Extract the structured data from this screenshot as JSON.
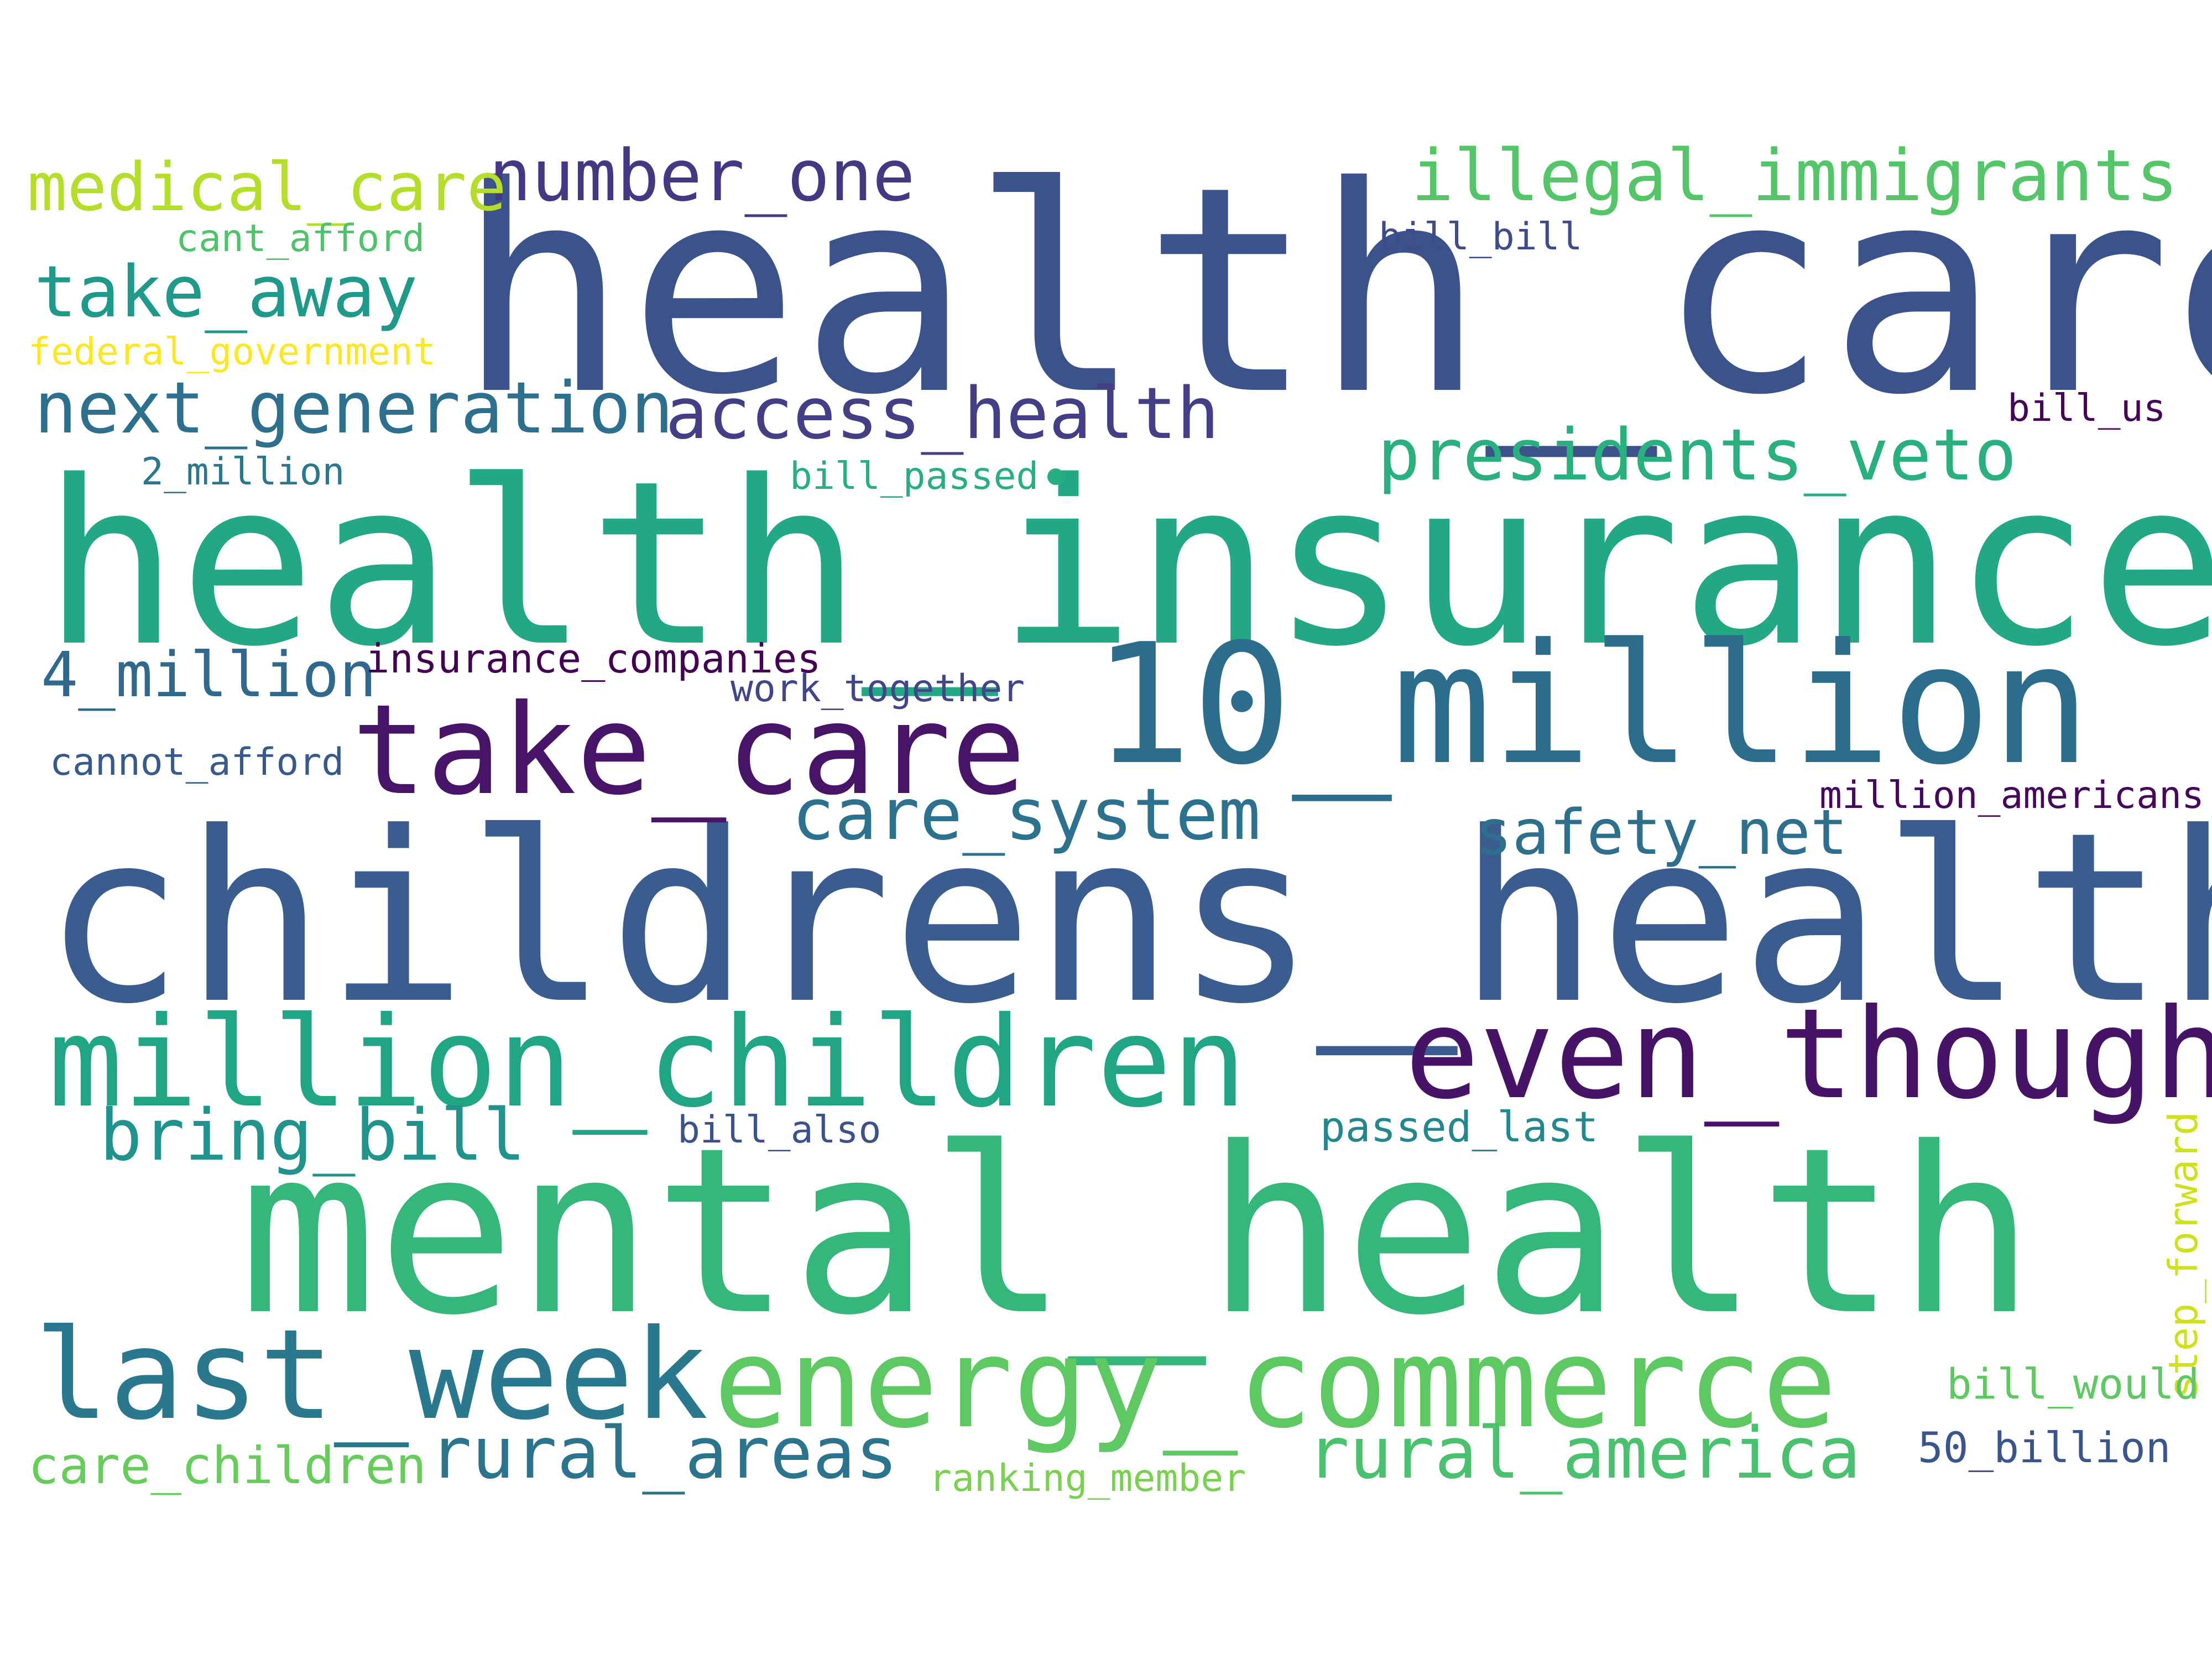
{
  "words": [
    {
      "id": "health_care",
      "text": "health_care",
      "color": "#3b528b"
    },
    {
      "id": "health_insurance",
      "text": "health_insurance",
      "color": "#22a884"
    },
    {
      "id": "childrens_health",
      "text": "childrens_health",
      "color": "#3b5c8f"
    },
    {
      "id": "mental_health",
      "text": "mental_health",
      "color": "#35b779"
    },
    {
      "id": "10_million",
      "text": "10_million",
      "color": "#2c6d8e"
    },
    {
      "id": "take_care",
      "text": "take_care",
      "color": "#481467"
    },
    {
      "id": "million_children",
      "text": "million_children",
      "color": "#21a685"
    },
    {
      "id": "even_though",
      "text": "even_though",
      "color": "#471366"
    },
    {
      "id": "energy_commerce",
      "text": "energy_commerce",
      "color": "#5ec962"
    },
    {
      "id": "last_week",
      "text": "last_week",
      "color": "#2a788e"
    },
    {
      "id": "illegal_immigrants",
      "text": "illegal_immigrants",
      "color": "#54c568"
    },
    {
      "id": "number_one",
      "text": "number_one",
      "color": "#453781"
    },
    {
      "id": "medical_care",
      "text": "medical_care",
      "color": "#b5de2b"
    },
    {
      "id": "take_away",
      "text": "take_away",
      "color": "#1f9a8a"
    },
    {
      "id": "next_generation",
      "text": "next_generation",
      "color": "#2d708e"
    },
    {
      "id": "access_health",
      "text": "access_health",
      "color": "#433e85"
    },
    {
      "id": "presidents_veto",
      "text": "presidents_veto",
      "color": "#2ab07f"
    },
    {
      "id": "care_system",
      "text": "care_system",
      "color": "#2c728e"
    },
    {
      "id": "safety_net",
      "text": "safety_net",
      "color": "#2e6f8e"
    },
    {
      "id": "4_million",
      "text": "4_million",
      "color": "#31688e"
    },
    {
      "id": "bring_bill",
      "text": "bring_bill",
      "color": "#20938c"
    },
    {
      "id": "rural_areas",
      "text": "rural_areas",
      "color": "#2c738e"
    },
    {
      "id": "rural_america",
      "text": "rural_america",
      "color": "#4ac16d"
    },
    {
      "id": "care_children",
      "text": "care_children",
      "color": "#67cc5c"
    },
    {
      "id": "insurance_companies",
      "text": "insurance_companies",
      "color": "#440154"
    },
    {
      "id": "cant_afford",
      "text": "cant_afford",
      "color": "#4ec36b"
    },
    {
      "id": "federal_government",
      "text": "federal_government",
      "color": "#fde725"
    },
    {
      "id": "bill_bill",
      "text": "bill_bill",
      "color": "#3e4c8a"
    },
    {
      "id": "bill_us",
      "text": "bill_us",
      "color": "#450559"
    },
    {
      "id": "2_million",
      "text": "2_million",
      "color": "#2a788e"
    },
    {
      "id": "bill_passed",
      "text": "bill_passed",
      "color": "#29af7f"
    },
    {
      "id": "work_together",
      "text": "work_together",
      "color": "#404688"
    },
    {
      "id": "cannot_afford",
      "text": "cannot_afford",
      "color": "#38598c"
    },
    {
      "id": "million_americans",
      "text": "million_americans",
      "color": "#46085c"
    },
    {
      "id": "bill_also",
      "text": "bill_also",
      "color": "#3b528b"
    },
    {
      "id": "passed_last",
      "text": "passed_last",
      "color": "#23888e"
    },
    {
      "id": "step_forward",
      "text": "step_forward",
      "color": "#d0e11c"
    },
    {
      "id": "bill_would",
      "text": "bill_would",
      "color": "#5ec962"
    },
    {
      "id": "50_billion",
      "text": "50_billion",
      "color": "#3a548c"
    },
    {
      "id": "ranking_member",
      "text": "ranking_member",
      "color": "#7ad151"
    }
  ],
  "dot_color": "#29af7f"
}
